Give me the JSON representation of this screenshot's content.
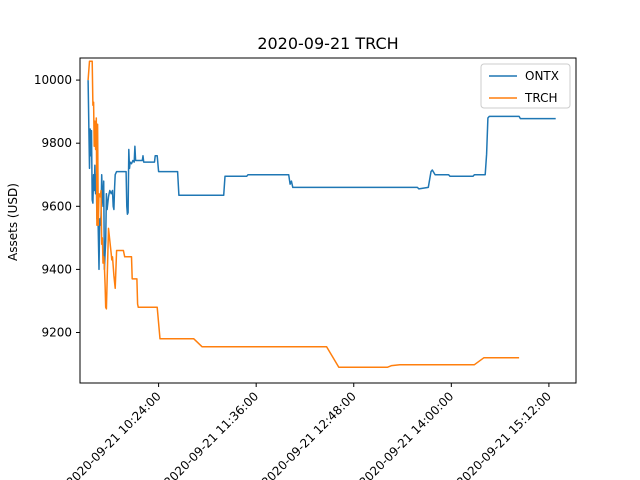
{
  "chart_data": {
    "type": "line",
    "title": "2020-09-21 TRCH",
    "xlabel": "",
    "ylabel": "Assets (USD)",
    "x_tick_labels": [
      "2020-09-21 10:24:00",
      "2020-09-21 11:36:00",
      "2020-09-21 12:48:00",
      "2020-09-21 14:00:00",
      "2020-09-21 15:12:00"
    ],
    "x_tick_minutes": [
      624,
      696,
      768,
      840,
      912
    ],
    "xlim_minutes": [
      566,
      932
    ],
    "ylim": [
      9040,
      10070
    ],
    "y_ticks": [
      9200,
      9400,
      9600,
      9800,
      10000
    ],
    "legend_position": "upper right",
    "series": [
      {
        "name": "ONTX",
        "color": "#1f77b4",
        "points": [
          [
            572,
            10000
          ],
          [
            573,
            9720
          ],
          [
            573.5,
            9845
          ],
          [
            574,
            9760
          ],
          [
            574.5,
            9840
          ],
          [
            575,
            9620
          ],
          [
            575.5,
            9610
          ],
          [
            576,
            9700
          ],
          [
            576.5,
            9650
          ],
          [
            577,
            9730
          ],
          [
            577.5,
            9640
          ],
          [
            578,
            9700
          ],
          [
            578.5,
            9560
          ],
          [
            579,
            9630
          ],
          [
            580,
            9400
          ],
          [
            580.5,
            9560
          ],
          [
            581,
            9540
          ],
          [
            581.5,
            9570
          ],
          [
            582,
            9700
          ],
          [
            582.5,
            9630
          ],
          [
            583,
            9600
          ],
          [
            583.5,
            9680
          ],
          [
            584,
            9400
          ],
          [
            584.5,
            9450
          ],
          [
            585,
            9490
          ],
          [
            585.5,
            9640
          ],
          [
            586,
            9590
          ],
          [
            587,
            9630
          ],
          [
            587.5,
            9640
          ],
          [
            588,
            9650
          ],
          [
            589,
            9640
          ],
          [
            590,
            9650
          ],
          [
            590.5,
            9600
          ],
          [
            591,
            9590
          ],
          [
            591.5,
            9660
          ],
          [
            592,
            9700
          ],
          [
            593,
            9710
          ],
          [
            600,
            9710
          ],
          [
            600.5,
            9600
          ],
          [
            601,
            9575
          ],
          [
            601.5,
            9580
          ],
          [
            602,
            9780
          ],
          [
            602.5,
            9720
          ],
          [
            603,
            9740
          ],
          [
            604,
            9735
          ],
          [
            605,
            9745
          ],
          [
            606,
            9740
          ],
          [
            606.5,
            9790
          ],
          [
            607,
            9745
          ],
          [
            612,
            9745
          ],
          [
            612.5,
            9760
          ],
          [
            613,
            9740
          ],
          [
            621,
            9740
          ],
          [
            621.5,
            9760
          ],
          [
            623,
            9760
          ],
          [
            624,
            9710
          ],
          [
            638,
            9710
          ],
          [
            639,
            9635
          ],
          [
            672,
            9635
          ],
          [
            673,
            9695
          ],
          [
            689,
            9695
          ],
          [
            690,
            9700
          ],
          [
            720,
            9700
          ],
          [
            721,
            9670
          ],
          [
            722,
            9680
          ],
          [
            723,
            9660
          ],
          [
            815,
            9660
          ],
          [
            816,
            9655
          ],
          [
            823,
            9660
          ],
          [
            825,
            9710
          ],
          [
            826,
            9715
          ],
          [
            828,
            9700
          ],
          [
            829,
            9700
          ],
          [
            838,
            9700
          ],
          [
            839,
            9695
          ],
          [
            856,
            9695
          ],
          [
            857,
            9700
          ],
          [
            865,
            9700
          ],
          [
            866,
            9765
          ],
          [
            867,
            9880
          ],
          [
            868,
            9885
          ],
          [
            890,
            9885
          ],
          [
            891,
            9878
          ],
          [
            917,
            9878
          ]
        ]
      },
      {
        "name": "TRCH",
        "color": "#ff7f0e",
        "points": [
          [
            572,
            10000
          ],
          [
            573,
            10060
          ],
          [
            575,
            10060
          ],
          [
            575.5,
            9920
          ],
          [
            576,
            9930
          ],
          [
            576.5,
            9790
          ],
          [
            577,
            9870
          ],
          [
            577.5,
            9780
          ],
          [
            578,
            9880
          ],
          [
            578.5,
            9540
          ],
          [
            579,
            9860
          ],
          [
            579.5,
            9540
          ],
          [
            580,
            9640
          ],
          [
            581,
            9630
          ],
          [
            581.5,
            9650
          ],
          [
            582,
            9480
          ],
          [
            582.5,
            9500
          ],
          [
            583,
            9420
          ],
          [
            583.5,
            9440
          ],
          [
            584,
            9410
          ],
          [
            584.5,
            9350
          ],
          [
            585,
            9280
          ],
          [
            585.5,
            9275
          ],
          [
            587,
            9530
          ],
          [
            589,
            9450
          ],
          [
            589.5,
            9430
          ],
          [
            590,
            9440
          ],
          [
            591,
            9380
          ],
          [
            592,
            9340
          ],
          [
            593,
            9460
          ],
          [
            598,
            9460
          ],
          [
            599,
            9440
          ],
          [
            604,
            9440
          ],
          [
            604.5,
            9370
          ],
          [
            608,
            9370
          ],
          [
            608.5,
            9290
          ],
          [
            609,
            9280
          ],
          [
            623,
            9280
          ],
          [
            625,
            9180
          ],
          [
            640,
            9180
          ],
          [
            650,
            9180
          ],
          [
            656,
            9155
          ],
          [
            714,
            9155
          ],
          [
            748,
            9155
          ],
          [
            757,
            9090
          ],
          [
            793,
            9090
          ],
          [
            796,
            9095
          ],
          [
            802,
            9098
          ],
          [
            857,
            9098
          ],
          [
            864,
            9120
          ],
          [
            890,
            9120
          ]
        ]
      }
    ]
  }
}
